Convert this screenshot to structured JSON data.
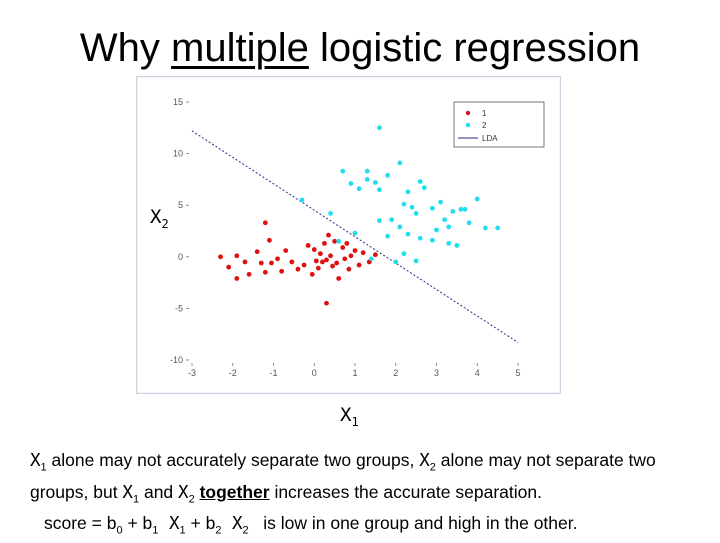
{
  "slide": {
    "title_pre": "Why ",
    "title_emph": "multiple",
    "title_post": " logistic regression"
  },
  "axis_labels": {
    "x2_main": "X",
    "x2_sub": "2",
    "x1_main": "X",
    "x1_sub": "1"
  },
  "text": {
    "l1_x": "X",
    "l1_x_sub": "1",
    "l1_a": " alone may not accurately separate two groups, ",
    "l1_x2": "X",
    "l1_x2_sub": "2",
    "l1_b": " alone may not separate two",
    "l2_a": "groups, but ",
    "l2_x1": "X",
    "l2_x1_sub": "1",
    "l2_and": " and ",
    "l2_x2": "X",
    "l2_x2_sub": "2",
    "l2_sp": " ",
    "l2_emph": "together",
    "l2_b": " increases the accurate separation.",
    "l3_a": "score = b",
    "l3_b0_sub": "0",
    "l3_plus1": " + b",
    "l3_b1_sub": "1",
    "l3_x1": " X",
    "l3_x1_sub": "1",
    "l3_plus2": " + b",
    "l3_b2_sub": "2",
    "l3_x2": " X",
    "l3_x2_sub": "2",
    "l3_b": "   is low in one group and high in the other."
  },
  "chart_data": {
    "type": "scatter",
    "xlim": [
      -3,
      5
    ],
    "ylim": [
      -10,
      15
    ],
    "xticks": [
      -3,
      -2,
      -1,
      0,
      1,
      2,
      3,
      4,
      5
    ],
    "yticks": [
      15,
      10,
      5,
      0,
      -5,
      -10
    ],
    "xtick_labels": [
      "-3",
      "-2",
      "-1",
      "0",
      "1",
      "2",
      "3",
      "4",
      "5"
    ],
    "ytick_labels": [
      "15",
      "10",
      "5",
      "0",
      "-5",
      "-10"
    ],
    "grid": false,
    "legend_position": "top-right",
    "series": [
      {
        "name": "1",
        "color": "#dd1111",
        "points": [
          [
            -2.3,
            0
          ],
          [
            -1.9,
            0.1
          ],
          [
            -1.7,
            -0.5
          ],
          [
            -2.1,
            -1
          ],
          [
            -1.9,
            -2.1
          ],
          [
            -1.6,
            -1.7
          ],
          [
            -1.4,
            0.5
          ],
          [
            -1.3,
            -0.6
          ],
          [
            -1.2,
            -1.5
          ],
          [
            -1.1,
            1.6
          ],
          [
            -1.05,
            -0.6
          ],
          [
            -0.9,
            -0.2
          ],
          [
            -0.8,
            -1.4
          ],
          [
            -0.7,
            0.6
          ],
          [
            -0.55,
            -0.5
          ],
          [
            -0.4,
            -1.2
          ],
          [
            -0.25,
            -0.8
          ],
          [
            -0.15,
            1.1
          ],
          [
            -0.05,
            -1.7
          ],
          [
            0,
            0.7
          ],
          [
            0.05,
            -0.4
          ],
          [
            0.1,
            -1.1
          ],
          [
            0.15,
            0.3
          ],
          [
            0.2,
            -0.5
          ],
          [
            0.25,
            1.3
          ],
          [
            0.3,
            -0.3
          ],
          [
            0.35,
            2.1
          ],
          [
            0.4,
            0.1
          ],
          [
            0.45,
            -0.9
          ],
          [
            0.5,
            1.5
          ],
          [
            0.55,
            -0.6
          ],
          [
            0.6,
            -2.1
          ],
          [
            0.7,
            0.9
          ],
          [
            0.75,
            -0.2
          ],
          [
            0.8,
            1.3
          ],
          [
            0.85,
            -1.2
          ],
          [
            0.9,
            0.1
          ],
          [
            1.0,
            0.6
          ],
          [
            1.1,
            -0.8
          ],
          [
            1.2,
            0.4
          ],
          [
            1.35,
            -0.5
          ],
          [
            1.5,
            0.2
          ],
          [
            -1.2,
            3.3
          ],
          [
            0.3,
            -4.5
          ]
        ]
      },
      {
        "name": "2",
        "color": "#22ddee",
        "points": [
          [
            1.6,
            12.5
          ],
          [
            0.7,
            8.3
          ],
          [
            0.9,
            7.1
          ],
          [
            1.3,
            8.3
          ],
          [
            1.1,
            6.6
          ],
          [
            1.3,
            7.5
          ],
          [
            1.5,
            7.2
          ],
          [
            1.6,
            6.5
          ],
          [
            1.8,
            7.9
          ],
          [
            2.1,
            9.1
          ],
          [
            2.3,
            6.3
          ],
          [
            2.6,
            7.3
          ],
          [
            2.7,
            6.7
          ],
          [
            2.4,
            4.8
          ],
          [
            2.2,
            5.1
          ],
          [
            2.5,
            4.2
          ],
          [
            2.9,
            4.7
          ],
          [
            3.1,
            5.3
          ],
          [
            3.2,
            3.6
          ],
          [
            3.3,
            2.9
          ],
          [
            3.4,
            4.4
          ],
          [
            3.6,
            4.6
          ],
          [
            3.7,
            4.6
          ],
          [
            3.8,
            3.3
          ],
          [
            4.0,
            5.6
          ],
          [
            4.2,
            2.8
          ],
          [
            4.5,
            2.8
          ],
          [
            1.9,
            3.6
          ],
          [
            2.1,
            2.9
          ],
          [
            2.3,
            2.2
          ],
          [
            2.6,
            1.8
          ],
          [
            2.9,
            1.6
          ],
          [
            3.0,
            2.6
          ],
          [
            3.3,
            1.3
          ],
          [
            3.5,
            1.1
          ],
          [
            1.0,
            2.3
          ],
          [
            0.6,
            1.5
          ],
          [
            -0.3,
            5.5
          ],
          [
            0.4,
            4.2
          ],
          [
            1.8,
            2.0
          ],
          [
            1.4,
            -0.2
          ],
          [
            2.0,
            -0.5
          ],
          [
            2.2,
            0.3
          ],
          [
            2.5,
            -0.4
          ],
          [
            1.6,
            3.5
          ]
        ]
      }
    ],
    "lines": [
      {
        "name": "LDA",
        "color": "#2a2a8a",
        "dashed": true,
        "x": [
          -3,
          5
        ],
        "y": [
          12.2,
          -8.3
        ]
      }
    ]
  }
}
